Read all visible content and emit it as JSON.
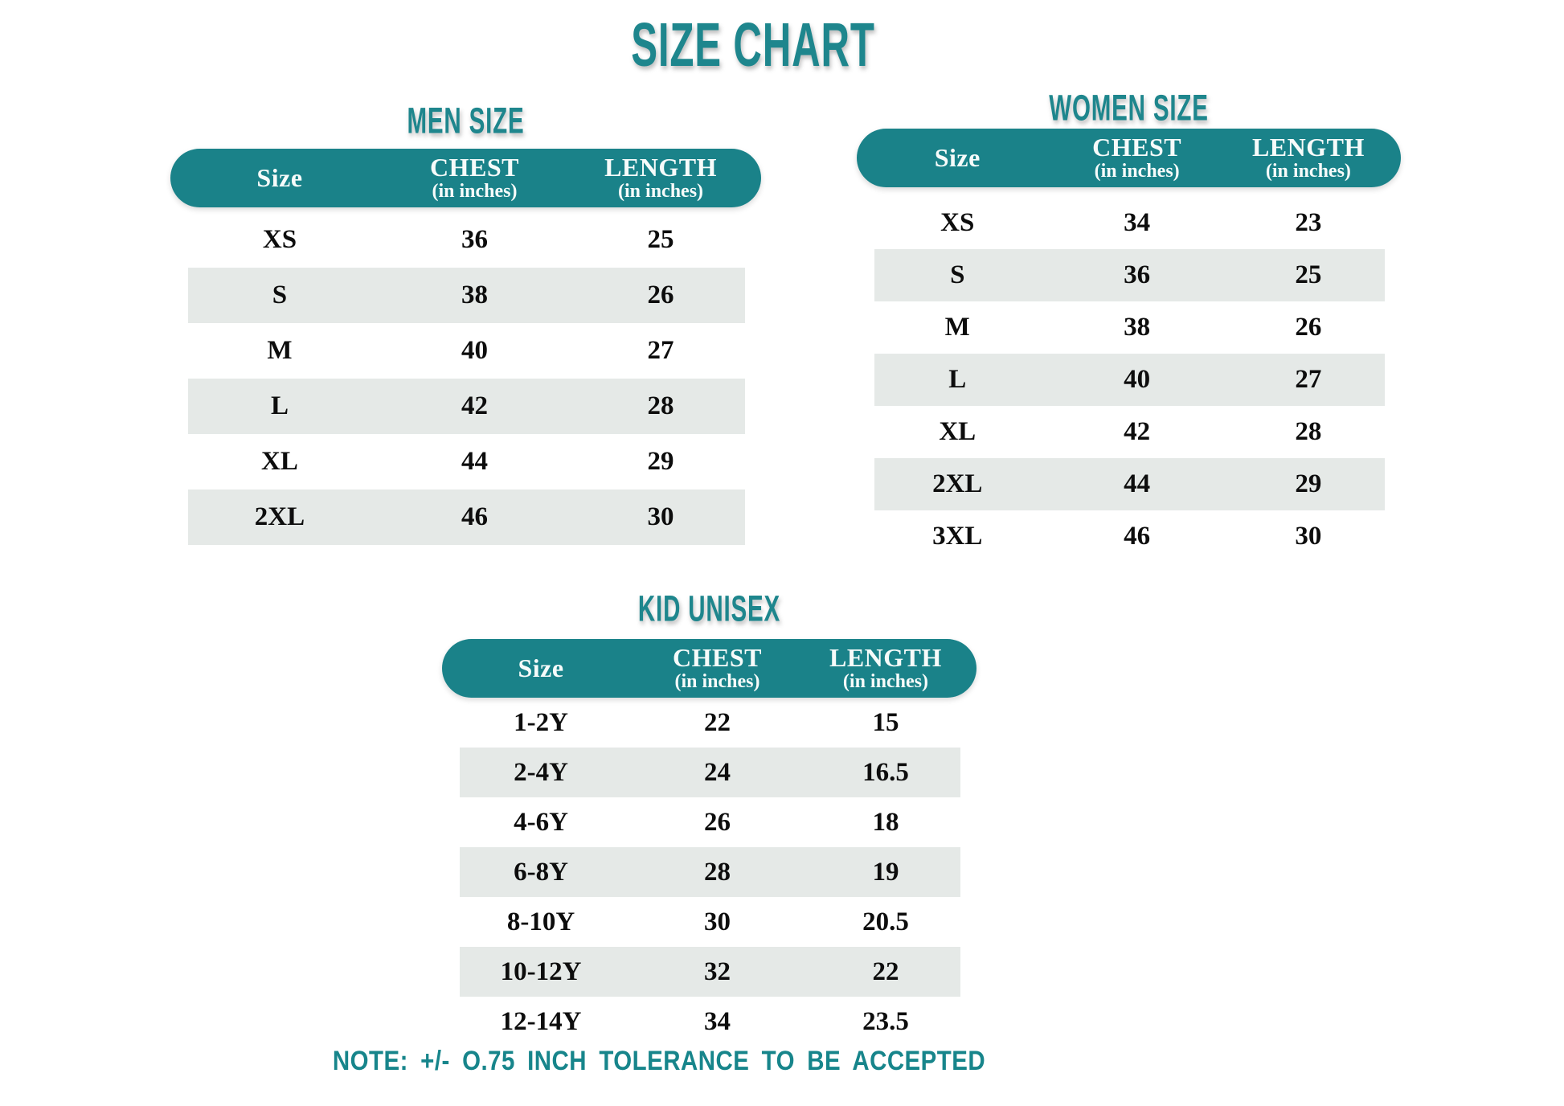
{
  "page": {
    "title": "SIZE CHART",
    "note": "NOTE: +/- O.75 INCH TOLERANCE TO BE ACCEPTED"
  },
  "colors": {
    "teal_header": "#1a8289",
    "teal_heading_text": "#1e868d",
    "row_stripe": "#e5e9e7",
    "row_text": "#0d0d0d",
    "background": "#ffffff"
  },
  "tables": [
    {
      "id": "men",
      "heading": "MEN SIZE",
      "columns": [
        {
          "label": "Size",
          "sub": ""
        },
        {
          "label": "CHEST",
          "sub": "(in inches)"
        },
        {
          "label": "LENGTH",
          "sub": "(in inches)"
        }
      ],
      "rows": [
        [
          "XS",
          "36",
          "25"
        ],
        [
          "S",
          "38",
          "26"
        ],
        [
          "M",
          "40",
          "27"
        ],
        [
          "L",
          "42",
          "28"
        ],
        [
          "XL",
          "44",
          "29"
        ],
        [
          "2XL",
          "46",
          "30"
        ]
      ]
    },
    {
      "id": "women",
      "heading": "WOMEN SIZE",
      "columns": [
        {
          "label": "Size",
          "sub": ""
        },
        {
          "label": "CHEST",
          "sub": "(in inches)"
        },
        {
          "label": "LENGTH",
          "sub": "(in inches)"
        }
      ],
      "rows": [
        [
          "XS",
          "34",
          "23"
        ],
        [
          "S",
          "36",
          "25"
        ],
        [
          "M",
          "38",
          "26"
        ],
        [
          "L",
          "40",
          "27"
        ],
        [
          "XL",
          "42",
          "28"
        ],
        [
          "2XL",
          "44",
          "29"
        ],
        [
          "3XL",
          "46",
          "30"
        ]
      ]
    },
    {
      "id": "kid",
      "heading": "KID UNISEX",
      "columns": [
        {
          "label": "Size",
          "sub": ""
        },
        {
          "label": "CHEST",
          "sub": "(in inches)"
        },
        {
          "label": "LENGTH",
          "sub": "(in inches)"
        }
      ],
      "rows": [
        [
          "1-2Y",
          "22",
          "15"
        ],
        [
          "2-4Y",
          "24",
          "16.5"
        ],
        [
          "4-6Y",
          "26",
          "18"
        ],
        [
          "6-8Y",
          "28",
          "19"
        ],
        [
          "8-10Y",
          "30",
          "20.5"
        ],
        [
          "10-12Y",
          "32",
          "22"
        ],
        [
          "12-14Y",
          "34",
          "23.5"
        ]
      ]
    }
  ]
}
